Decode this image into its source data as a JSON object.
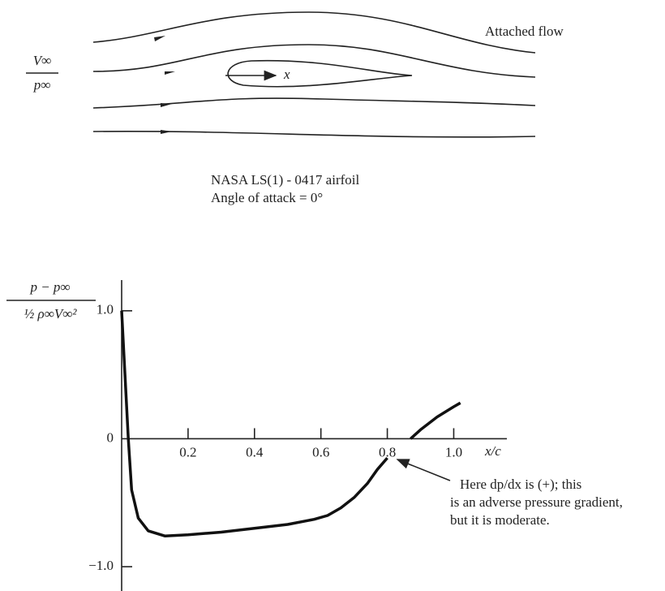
{
  "diagram": {
    "flow_label": "Attached flow",
    "freestream_velocity": "V∞",
    "freestream_pressure": "p∞",
    "axis_label": "x",
    "airfoil_name": "NASA LS(1) - 0417 airfoil",
    "angle_of_attack": "Angle of attack = 0°"
  },
  "chart_data": {
    "type": "line",
    "ylabel_numerator": "p − p∞",
    "ylabel_denominator": "½ ρ∞V∞²",
    "xlabel": "x/c",
    "x": [
      0,
      0.01,
      0.02,
      0.03,
      0.05,
      0.08,
      0.13,
      0.2,
      0.3,
      0.4,
      0.5,
      0.58,
      0.62,
      0.66,
      0.7,
      0.74,
      0.77,
      0.8,
      0.83,
      0.87,
      0.9,
      0.95,
      1.0,
      1.02
    ],
    "values": [
      1.0,
      0.5,
      0.0,
      -0.4,
      -0.62,
      -0.72,
      -0.76,
      -0.75,
      -0.73,
      -0.7,
      -0.67,
      -0.63,
      -0.6,
      -0.54,
      -0.46,
      -0.35,
      -0.24,
      -0.15,
      null,
      0.0,
      0.07,
      0.17,
      0.25,
      0.28
    ],
    "color": "#111111",
    "xlim": [
      0,
      1.16
    ],
    "ylim": [
      -1.19,
      1.24
    ],
    "xticks": [
      0.2,
      0.4,
      0.6,
      0.8,
      {
        "value": 1,
        "label": "1.0"
      }
    ],
    "yticks": [
      {
        "value": 1,
        "label": "1.0"
      },
      0,
      {
        "value": -1,
        "label": "−1.0"
      }
    ],
    "annotation": [
      "Here dp/dx is (+); this",
      "is an adverse pressure gradient,",
      "but it is moderate."
    ]
  }
}
